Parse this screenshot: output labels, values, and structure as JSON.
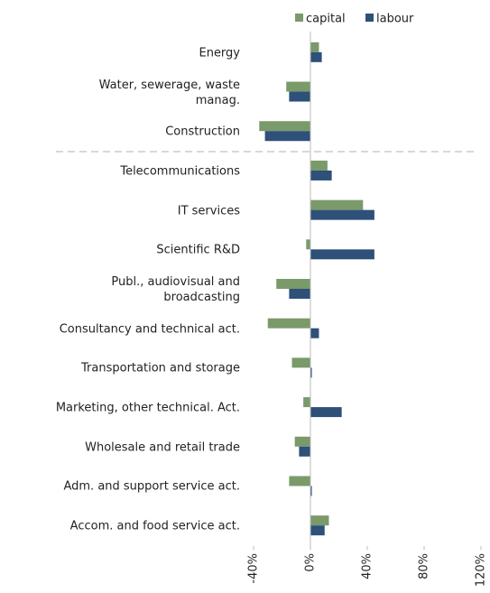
{
  "chart_data": {
    "type": "bar",
    "orientation": "horizontal",
    "categories": [
      "Energy",
      "Water, sewerage, waste\nmanag.",
      "Construction",
      "Telecommunications",
      "IT services",
      "Scientific R&D",
      "Publ., audiovisual and\nbroadcasting",
      "Consultancy and technical act.",
      "Transportation and storage",
      "Marketing, other technical. Act.",
      "Wholesale and retail trade",
      "Adm. and support service act.",
      "Accom. and food service act."
    ],
    "series": [
      {
        "name": "capital",
        "color": "#7a9a6a",
        "values": [
          6,
          -17,
          -36,
          12,
          37,
          -3,
          -24,
          -30,
          -13,
          -5,
          -11,
          -15,
          13
        ]
      },
      {
        "name": "labour",
        "color": "#2e5079",
        "values": [
          8,
          -15,
          -32,
          15,
          45,
          45,
          -15,
          6,
          1,
          22,
          -8,
          1,
          10
        ]
      }
    ],
    "xlim": [
      -40,
      120
    ],
    "xticks": [
      {
        "value": -40,
        "label": "-40%"
      },
      {
        "value": 0,
        "label": "0%"
      },
      {
        "value": 40,
        "label": "40%"
      },
      {
        "value": 80,
        "label": "80%"
      },
      {
        "value": 120,
        "label": "120%"
      }
    ],
    "legend": "top"
  }
}
